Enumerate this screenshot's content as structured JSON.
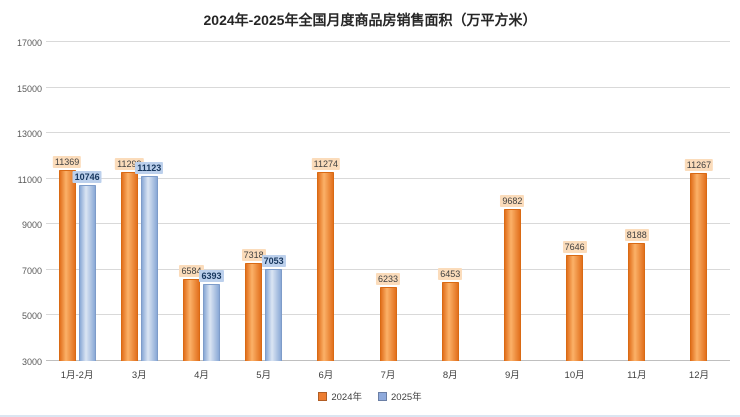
{
  "title": "2024年-2025年全国月度商品房销售面积（万平方米）",
  "legend": [
    {
      "label": "2024年",
      "color": "#ed7d31"
    },
    {
      "label": "2025年",
      "color": "#8faadc"
    }
  ],
  "chart_data": {
    "type": "bar",
    "title": "2024年-2025年全国月度商品房销售面积（万平方米）",
    "categories": [
      "1月-2月",
      "3月",
      "4月",
      "5月",
      "6月",
      "7月",
      "8月",
      "9月",
      "10月",
      "11月",
      "12月"
    ],
    "series": [
      {
        "name": "2024年",
        "color": "#ed7d31",
        "values": [
          11369,
          11299,
          6584,
          7318,
          11274,
          6233,
          6453,
          9682,
          7646,
          8188,
          11267
        ]
      },
      {
        "name": "2025年",
        "color": "#8faadc",
        "values": [
          10746,
          11123,
          6393,
          7053,
          null,
          null,
          null,
          null,
          null,
          null,
          null
        ]
      }
    ],
    "ylim": [
      3000,
      17000
    ],
    "yticks": [
      3000,
      5000,
      7000,
      9000,
      11000,
      13000,
      15000,
      17000
    ],
    "grid": true,
    "legend_position": "bottom"
  }
}
